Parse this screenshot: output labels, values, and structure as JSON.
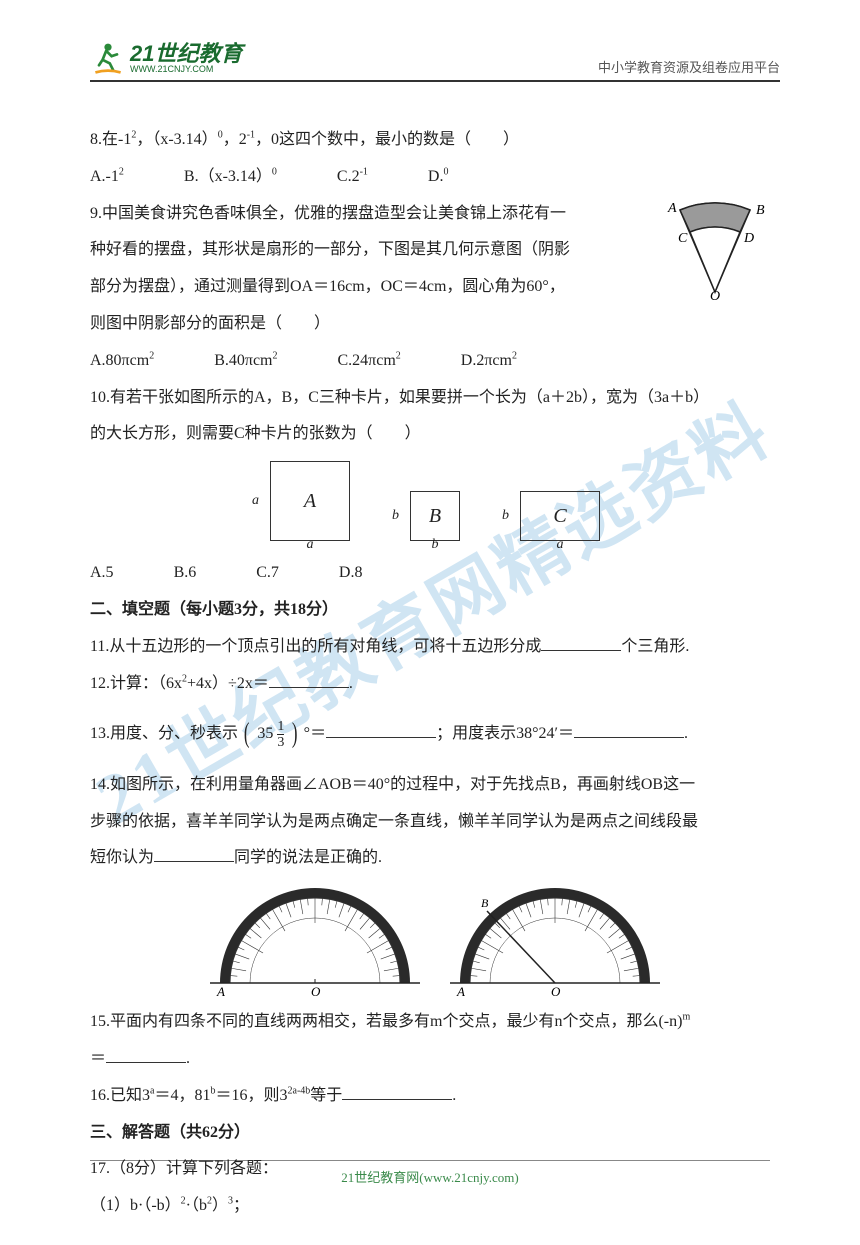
{
  "header": {
    "logo_main": "21世纪教育",
    "logo_sub": "WWW.21CNJY.COM",
    "right": "中小学教育资源及组卷应用平台"
  },
  "watermark": "21世纪教育网精选资料",
  "q8": {
    "text_a": "8.在-1",
    "text_b": "，（x-3.14）",
    "text_c": "，2",
    "text_d": "，0这四个数中，最小的数是（　　）",
    "optA_a": "A.-1",
    "optB_a": "B.（x-3.14）",
    "optC_a": "C.2",
    "optD_a": "D."
  },
  "q9": {
    "l1": "9.中国美食讲究色香味俱全，优雅的摆盘造型会让美食锦上添花有一",
    "l2": "种好看的摆盘，其形状是扇形的一部分，下图是其几何示意图（阴影",
    "l3": "部分为摆盘），通过测量得到OA＝16cm，OC＝4cm，圆心角为60°，",
    "l4": "则图中阴影部分的面积是（　　）",
    "optA": "A.80πcm",
    "optB": "B.40πcm",
    "optC": "C.24πcm",
    "optD": "D.2πcm"
  },
  "q10": {
    "l1": "10.有若干张如图所示的A，B，C三种卡片，如果要拼一个长为（a＋2b），宽为（3a＋b）",
    "l2": "的大长方形，则需要C种卡片的张数为（　　）",
    "optA": "A.5",
    "optB": "B.6",
    "optC": "C.7",
    "optD": "D.8",
    "cardA": "A",
    "cardB": "B",
    "cardC": "C",
    "dim_a": "a",
    "dim_b": "b"
  },
  "section2": "二、填空题（每小题3分，共18分）",
  "q11": {
    "a": "11.从十五边形的一个顶点引出的所有对角线，可将十五边形分成",
    "b": "个三角形."
  },
  "q12": {
    "a": "12.计算：（6x",
    "b": "+4x）÷2x＝",
    "c": "."
  },
  "q13": {
    "a": "13.用度、分、秒表示",
    "fracWhole": "35",
    "fracNum": "1",
    "fracDen": "3",
    "deg": "°＝",
    "b": "；用度表示38°24′＝",
    "c": "."
  },
  "q14": {
    "l1": "14.如图所示，在利用量角器画∠AOB＝40°的过程中，对于先找点B，再画射线OB这一",
    "l2": "步骤的依据，喜羊羊同学认为是两点确定一条直线，懒羊羊同学认为是两点之间线段最",
    "l3a": "短你认为",
    "l3b": "同学的说法是正确的."
  },
  "q15": {
    "a": "15.平面内有四条不同的直线两两相交，若最多有m个交点，最少有n个交点，那么(-n)",
    "b": "＝",
    "c": "."
  },
  "q16": {
    "a": "16.已知3",
    "b": "＝4，81",
    "c": "＝16，则3",
    "d": "等于",
    "e": "."
  },
  "section3": "三、解答题（共62分）",
  "q17": {
    "head": "17.（8分）计算下列各题：",
    "sub1_a": "（1）b·（-b）",
    "sub1_b": "·（b",
    "sub1_c": "）",
    "sub1_d": "；"
  },
  "footer": "21世纪教育网(www.21cnjy.com)",
  "colors": {
    "text": "#222222",
    "green": "#1a6b2f",
    "watermark": "rgba(120,180,220,0.35)",
    "border": "#333333"
  },
  "sector": {
    "labels": {
      "A": "A",
      "B": "B",
      "C": "C",
      "D": "D",
      "O": "O"
    },
    "fill": "#9a9a9a"
  },
  "protractor": {
    "baseline_labels": {
      "A": "A",
      "O": "O",
      "B": "B"
    }
  }
}
